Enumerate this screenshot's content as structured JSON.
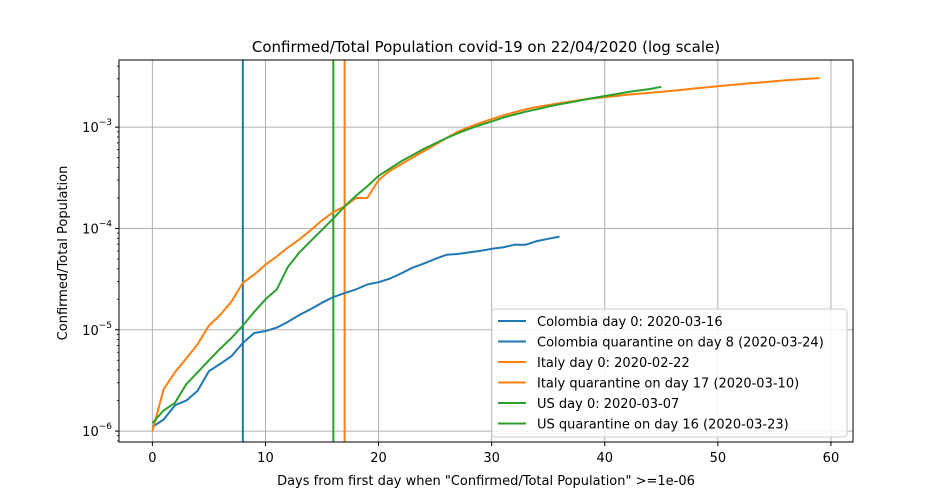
{
  "chart_data": {
    "type": "line",
    "title": "Confirmed/Total Population covid-19 on 22/04/2020  (log scale)",
    "xlabel": "Days from first day when \"Confirmed/Total Population\" >=1e-06",
    "ylabel": "Confirmed/Total Population",
    "xlim": [
      -2.95,
      61.95
    ],
    "ylim": [
      7.8e-07,
      0.0046
    ],
    "yscale": "log",
    "grid": true,
    "legend_position": "lower-right",
    "x_ticks": [
      0,
      10,
      20,
      30,
      40,
      50,
      60
    ],
    "y_ticks": [
      {
        "value": 1e-06,
        "base": "10",
        "exp": "−6"
      },
      {
        "value": 1e-05,
        "base": "10",
        "exp": "−5"
      },
      {
        "value": 0.0001,
        "base": "10",
        "exp": "−4"
      },
      {
        "value": 0.001,
        "base": "10",
        "exp": "−3"
      }
    ],
    "series": [
      {
        "name": "Colombia day 0: 2020-03-16",
        "color": "#1f77b4",
        "x": [
          0,
          1,
          2,
          3,
          4,
          5,
          6,
          7,
          8,
          9,
          10,
          11,
          12,
          13,
          14,
          15,
          16,
          17,
          18,
          19,
          20,
          21,
          22,
          23,
          24,
          25,
          26,
          27,
          28,
          29,
          30,
          31,
          32,
          33,
          34,
          35,
          36
        ],
        "y": [
          1.1e-06,
          1.3e-06,
          1.8e-06,
          2e-06,
          2.5e-06,
          3.9e-06,
          4.6e-06,
          5.5e-06,
          7.4e-06,
          9.3e-06,
          9.7e-06,
          1.05e-05,
          1.2e-05,
          1.4e-05,
          1.6e-05,
          1.85e-05,
          2.1e-05,
          2.3e-05,
          2.5e-05,
          2.8e-05,
          2.95e-05,
          3.2e-05,
          3.6e-05,
          4.1e-05,
          4.5e-05,
          5e-05,
          5.5e-05,
          5.6e-05,
          5.8e-05,
          6e-05,
          6.3e-05,
          6.5e-05,
          6.9e-05,
          6.9e-05,
          7.5e-05,
          7.9e-05,
          8.3e-05
        ]
      },
      {
        "name": "Colombia quarantine on day 8 (2020-03-24)",
        "color": "#1f77b4",
        "vline": 8
      },
      {
        "name": "Italy day 0: 2020-02-22",
        "color": "#ff7f0e",
        "x": [
          0,
          1,
          2,
          3,
          4,
          5,
          6,
          7,
          8,
          9,
          10,
          11,
          12,
          13,
          14,
          15,
          16,
          17,
          18,
          19,
          20,
          21,
          22,
          23,
          24,
          25,
          26,
          27,
          28,
          29,
          30,
          31,
          32,
          33,
          34,
          35,
          36,
          37,
          38,
          39,
          40,
          41,
          42,
          43,
          44,
          45,
          46,
          47,
          48,
          49,
          50,
          51,
          52,
          53,
          54,
          55,
          56,
          57,
          58,
          59
        ],
        "y": [
          1e-06,
          2.6e-06,
          3.8e-06,
          5.2e-06,
          7.2e-06,
          1.1e-05,
          1.4e-05,
          1.9e-05,
          2.9e-05,
          3.5e-05,
          4.4e-05,
          5.3e-05,
          6.5e-05,
          7.8e-05,
          9.6e-05,
          0.00012,
          0.000145,
          0.000165,
          0.0002,
          0.0002,
          0.0003,
          0.00037,
          0.00043,
          0.0005,
          0.00058,
          0.00067,
          0.00078,
          0.0009,
          0.001,
          0.0011,
          0.0012,
          0.0013,
          0.0014,
          0.0015,
          0.00158,
          0.00165,
          0.00172,
          0.00179,
          0.00186,
          0.00192,
          0.00198,
          0.00203,
          0.00209,
          0.00214,
          0.00219,
          0.00223,
          0.00229,
          0.00235,
          0.00241,
          0.00247,
          0.00253,
          0.0026,
          0.00266,
          0.00272,
          0.00278,
          0.00284,
          0.0029,
          0.00295,
          0.003,
          0.00305
        ]
      },
      {
        "name": "Italy quarantine on day 17 (2020-03-10)",
        "color": "#ff7f0e",
        "vline": 17
      },
      {
        "name": "US day 0: 2020-03-07",
        "color": "#2ca02c",
        "x": [
          0,
          1,
          2,
          3,
          4,
          5,
          6,
          7,
          8,
          9,
          10,
          11,
          12,
          13,
          14,
          15,
          16,
          17,
          18,
          19,
          20,
          21,
          22,
          23,
          24,
          25,
          26,
          27,
          28,
          29,
          30,
          31,
          32,
          33,
          34,
          35,
          36,
          37,
          38,
          39,
          40,
          41,
          42,
          43,
          44,
          45
        ],
        "y": [
          1.2e-06,
          1.6e-06,
          1.9e-06,
          2.9e-06,
          3.8e-06,
          5e-06,
          6.5e-06,
          8.3e-06,
          1.1e-05,
          1.5e-05,
          2e-05,
          2.5e-05,
          4.2e-05,
          5.8e-05,
          7.5e-05,
          9.7e-05,
          0.000125,
          0.000165,
          0.00021,
          0.00026,
          0.00033,
          0.00039,
          0.00046,
          0.00053,
          0.00061,
          0.00069,
          0.00078,
          0.00087,
          0.00096,
          0.00105,
          0.00114,
          0.00124,
          0.00133,
          0.00142,
          0.0015,
          0.0016,
          0.00168,
          0.00176,
          0.00185,
          0.00194,
          0.00203,
          0.00212,
          0.00222,
          0.0023,
          0.00238,
          0.0025
        ]
      },
      {
        "name": "US quarantine on day 16 (2020-03-23)",
        "color": "#2ca02c",
        "vline": 16
      }
    ]
  }
}
